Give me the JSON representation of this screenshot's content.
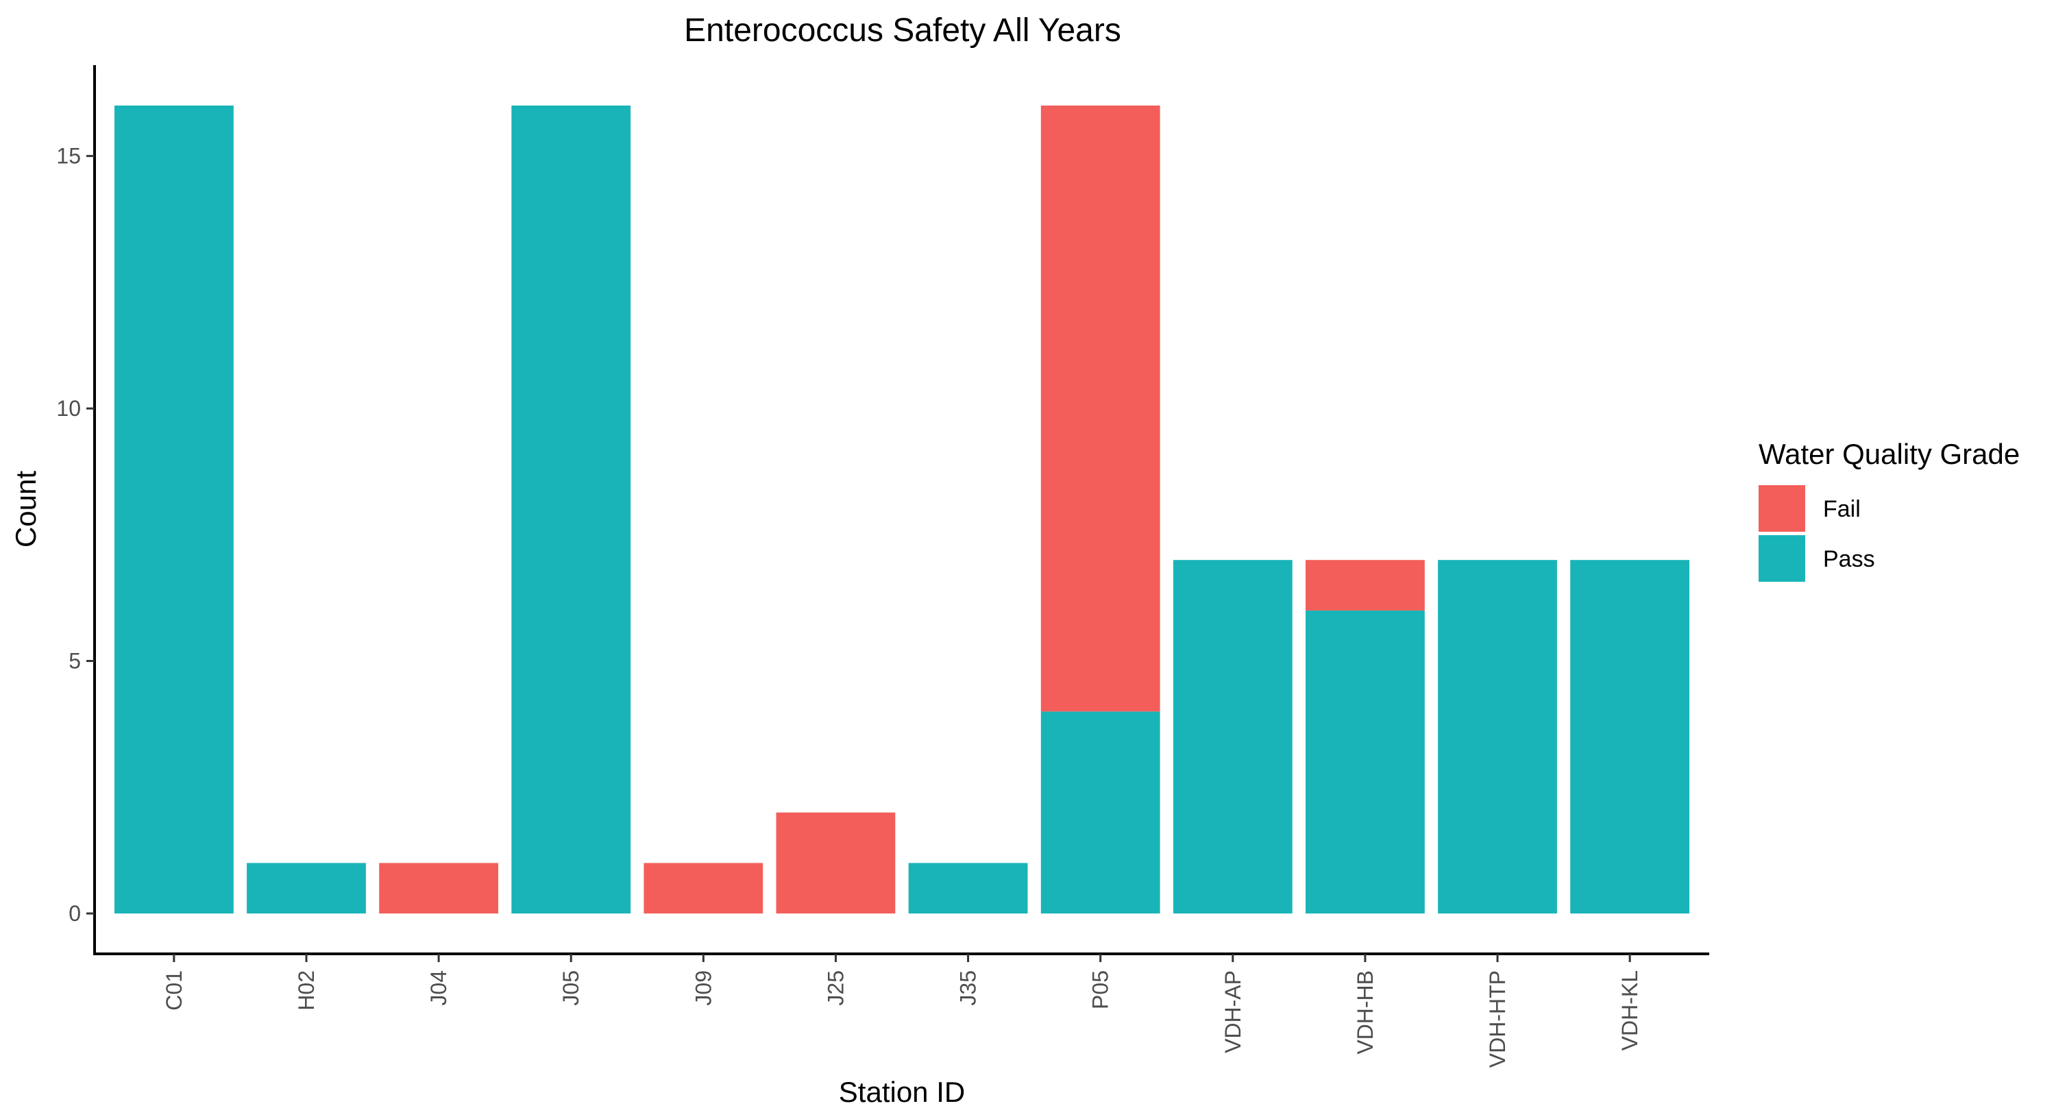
{
  "chart_data": {
    "type": "bar",
    "stacked": true,
    "title": "Enterococcus Safety All Years",
    "xlabel": "Station ID",
    "ylabel": "Count",
    "ylim": [
      -0.8,
      16.8
    ],
    "yticks": [
      0,
      5,
      10,
      15
    ],
    "categories": [
      "C01",
      "H02",
      "J04",
      "J05",
      "J09",
      "J25",
      "J35",
      "P05",
      "VDH-AP",
      "VDH-HB",
      "VDH-HTP",
      "VDH-KL"
    ],
    "series": [
      {
        "name": "Pass",
        "color": "#19b4b7",
        "values": [
          16,
          1,
          0,
          16,
          0,
          0,
          1,
          4,
          7,
          6,
          7,
          7
        ]
      },
      {
        "name": "Fail",
        "color": "#f35e5a",
        "values": [
          0,
          0,
          1,
          0,
          1,
          2,
          0,
          12,
          0,
          1,
          0,
          0
        ]
      }
    ],
    "legend": {
      "title": "Water Quality Grade",
      "position": "right",
      "order": [
        "Fail",
        "Pass"
      ]
    },
    "grid": false
  }
}
